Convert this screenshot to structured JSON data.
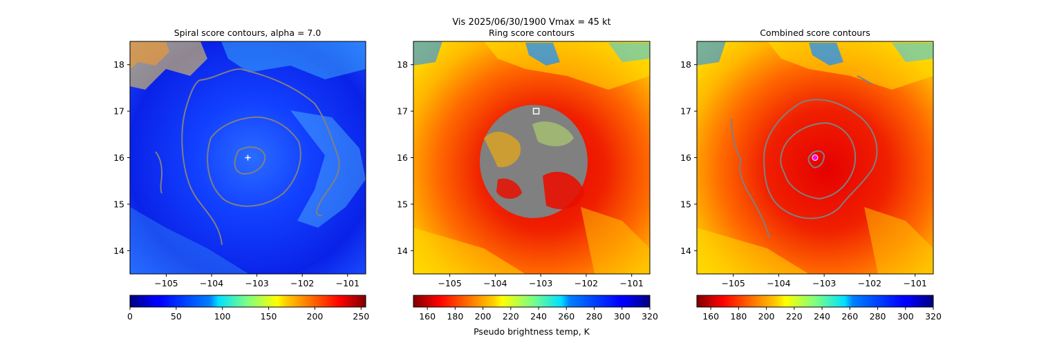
{
  "figure": {
    "suptitle_line": "Vis  2025/06/30/1900    Vmax = 45 kt",
    "colorbar_label": "Pseudo brightness temp, K"
  },
  "chart_data": [
    {
      "type": "heatmap",
      "title": "Spiral score contours, alpha =  7.0",
      "xlim": [
        -105.8,
        -100.6
      ],
      "ylim": [
        13.5,
        18.5
      ],
      "xticks": [
        -105,
        -104,
        -103,
        -102,
        -101
      ],
      "yticks": [
        14,
        15,
        16,
        17,
        18
      ],
      "colormap": "jet",
      "colorbar": {
        "range": [
          0,
          255
        ],
        "ticks": [
          0,
          50,
          100,
          150,
          200,
          250
        ]
      },
      "marker": {
        "symbol": "+",
        "x": -103.2,
        "y": 16.0,
        "color": "#ffffff"
      },
      "contour_color": "#808080"
    },
    {
      "type": "heatmap",
      "title": "Ring score contours",
      "xlim": [
        -105.8,
        -100.6
      ],
      "ylim": [
        13.5,
        18.5
      ],
      "xticks": [
        -105,
        -104,
        -103,
        -102,
        -101
      ],
      "yticks": [
        14,
        15,
        16,
        17,
        18
      ],
      "colormap": "jet_r",
      "colorbar": {
        "range": [
          150,
          320
        ],
        "ticks": [
          160,
          180,
          200,
          220,
          240,
          260,
          280,
          300,
          320
        ]
      },
      "marker": {
        "symbol": "square",
        "x": -103.1,
        "y": 17.0,
        "color": "#ffffff"
      },
      "contour_color": "#808080"
    },
    {
      "type": "heatmap",
      "title": "Combined score contours",
      "xlim": [
        -105.8,
        -100.6
      ],
      "ylim": [
        13.5,
        18.5
      ],
      "xticks": [
        -105,
        -104,
        -103,
        -102,
        -101
      ],
      "yticks": [
        14,
        15,
        16,
        17,
        18
      ],
      "colormap": "jet_r",
      "colorbar": {
        "range": [
          150,
          320
        ],
        "ticks": [
          160,
          180,
          200,
          220,
          240,
          260,
          280,
          300,
          320
        ]
      },
      "marker": {
        "symbol": "circle",
        "x": -103.2,
        "y": 16.0,
        "color": "#ff00ff"
      },
      "contour_color": "#808080"
    }
  ]
}
